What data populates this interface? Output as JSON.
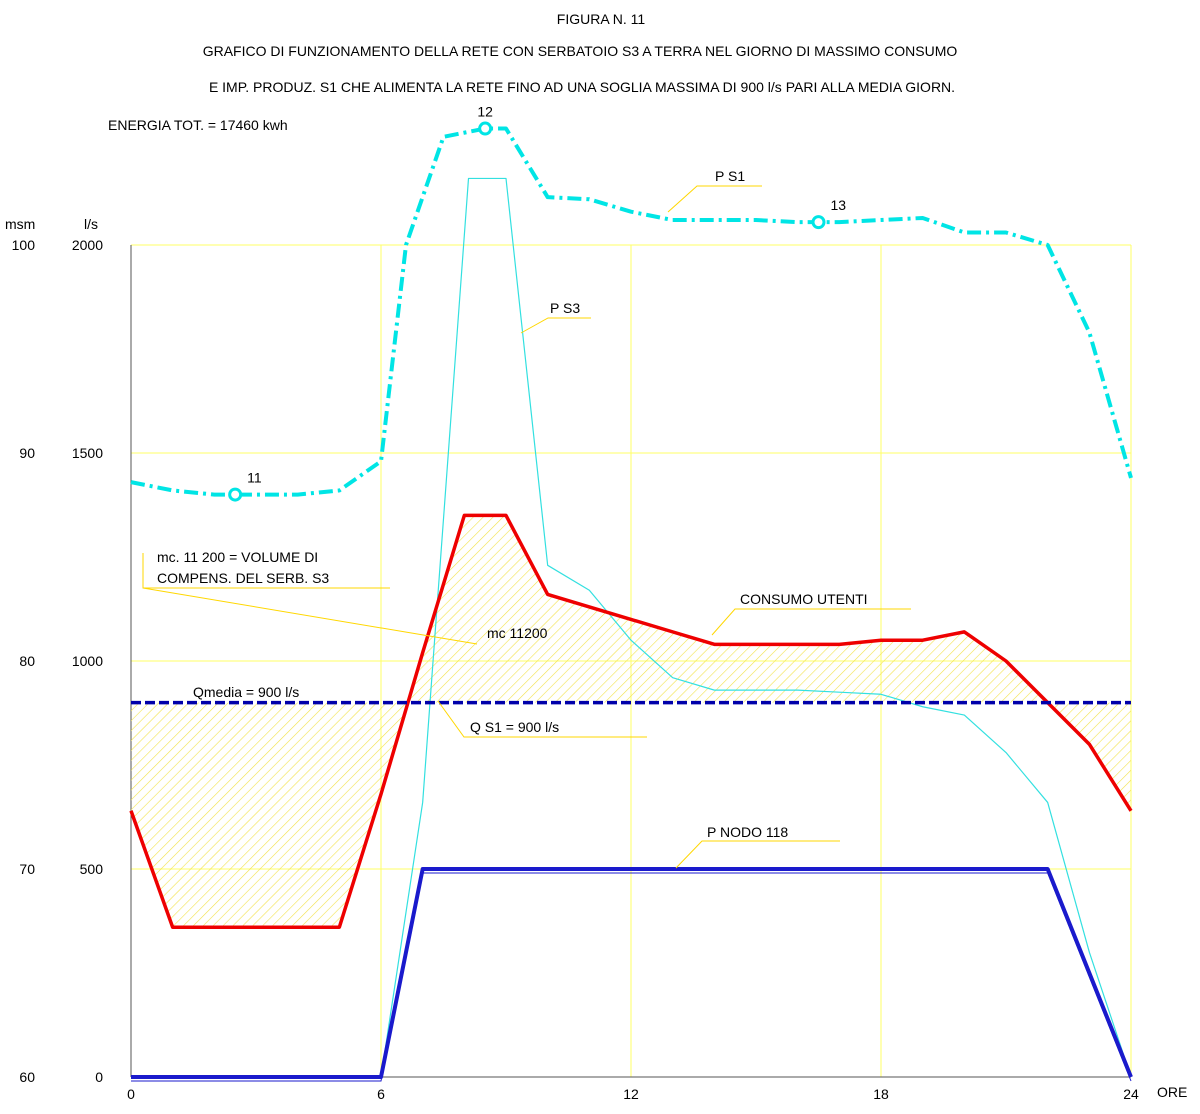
{
  "header": {
    "figure_label": "FIGURA N. 11",
    "title_line1": "GRAFICO DI FUNZIONAMENTO DELLA RETE CON SERBATOIO S3 A TERRA NEL GIORNO DI MASSIMO CONSUMO",
    "title_line2": "E IMP. PRODUZ. S1 CHE ALIMENTA LA RETE FINO AD UNA SOGLIA MASSIMA DI 900 l/s PARI ALLA MEDIA GIORN.",
    "energy": "ENERGIA TOT. = 17460 kwh"
  },
  "chart_data": {
    "type": "line",
    "xlabel": "ORE",
    "ylabel_left_msm": "msm",
    "ylabel_left_flow": "l/s",
    "xlim": [
      0,
      24
    ],
    "ylim_flow": [
      0,
      2000
    ],
    "ylim_msm": [
      60,
      100
    ],
    "grid": true,
    "x_ticks": [
      "0",
      "6",
      "12",
      "18",
      "24"
    ],
    "y_ticks_flow": [
      "0",
      "500",
      "1000",
      "1500",
      "2000"
    ],
    "y_ticks_msm": [
      "60",
      "70",
      "80",
      "90",
      "100"
    ],
    "colors": {
      "grid": "#ffff66",
      "ps1": "#00e5e5",
      "ps3": "#33e0e0",
      "consumo": "#ee0000",
      "qmedia": "#0000aa",
      "pnodo": "#1a1acc",
      "hatch": "#f2e24d",
      "leader": "#ffd700"
    },
    "series": [
      {
        "name": "P S1",
        "unit": "msm",
        "points": [
          [
            0,
            88.6
          ],
          [
            1,
            88.2
          ],
          [
            2,
            88.0
          ],
          [
            3,
            88.0
          ],
          [
            4,
            88.0
          ],
          [
            5,
            88.2
          ],
          [
            6,
            89.6
          ],
          [
            6.6,
            100.0
          ],
          [
            7.5,
            105.2
          ],
          [
            8.5,
            105.6
          ],
          [
            9,
            105.6
          ],
          [
            10,
            102.3
          ],
          [
            11,
            102.2
          ],
          [
            12,
            101.6
          ],
          [
            13,
            101.2
          ],
          [
            14,
            101.2
          ],
          [
            15,
            101.2
          ],
          [
            16,
            101.1
          ],
          [
            17,
            101.1
          ],
          [
            18,
            101.2
          ],
          [
            19,
            101.3
          ],
          [
            20,
            100.6
          ],
          [
            21,
            100.6
          ],
          [
            22,
            100.0
          ],
          [
            23,
            95.8
          ],
          [
            24,
            88.8
          ]
        ]
      },
      {
        "name": "P S3",
        "unit": "l/s",
        "points": [
          [
            6,
            0
          ],
          [
            7,
            660
          ],
          [
            8.1,
            2160
          ],
          [
            9,
            2160
          ],
          [
            10,
            1230
          ],
          [
            11,
            1170
          ],
          [
            12,
            1050
          ],
          [
            13,
            960
          ],
          [
            14,
            930
          ],
          [
            15,
            930
          ],
          [
            16,
            930
          ],
          [
            17,
            925
          ],
          [
            18,
            920
          ],
          [
            19,
            890
          ],
          [
            20,
            870
          ],
          [
            21,
            780
          ],
          [
            22,
            660
          ],
          [
            23,
            300
          ],
          [
            24,
            0
          ]
        ]
      },
      {
        "name": "CONSUMO UTENTI",
        "unit": "l/s",
        "points": [
          [
            0,
            640
          ],
          [
            1,
            360
          ],
          [
            2,
            360
          ],
          [
            3,
            360
          ],
          [
            4,
            360
          ],
          [
            5,
            360
          ],
          [
            6,
            680
          ],
          [
            7,
            1020
          ],
          [
            8,
            1350
          ],
          [
            9,
            1350
          ],
          [
            10,
            1160
          ],
          [
            11,
            1130
          ],
          [
            12,
            1100
          ],
          [
            13,
            1070
          ],
          [
            14,
            1040
          ],
          [
            15,
            1040
          ],
          [
            16,
            1040
          ],
          [
            17,
            1040
          ],
          [
            18,
            1050
          ],
          [
            19,
            1050
          ],
          [
            20,
            1070
          ],
          [
            21,
            1000
          ],
          [
            22,
            900
          ],
          [
            23,
            800
          ],
          [
            24,
            640
          ]
        ]
      },
      {
        "name": "Qmedia = 900 l/s",
        "unit": "l/s",
        "points": [
          [
            0,
            900
          ],
          [
            24,
            900
          ]
        ]
      },
      {
        "name": "P NODO 118",
        "unit": "msm",
        "points": [
          [
            0,
            60
          ],
          [
            6,
            60
          ],
          [
            7,
            70
          ],
          [
            22,
            70
          ],
          [
            24,
            60
          ]
        ]
      }
    ],
    "markers": [
      {
        "label": "11",
        "x": 2.5,
        "y": 88.0,
        "series": "P S1"
      },
      {
        "label": "12",
        "x": 8.5,
        "y": 105.6,
        "series": "P S1"
      },
      {
        "label": "13",
        "x": 16.5,
        "y": 101.1,
        "series": "P S1"
      }
    ],
    "annotations": [
      {
        "text": "P S1"
      },
      {
        "text": "P S3"
      },
      {
        "text": "CONSUMO UTENTI"
      },
      {
        "text": "Qmedia = 900 l/s"
      },
      {
        "text": "Q S1 = 900 l/s"
      },
      {
        "text": "P NODO 118"
      },
      {
        "text": "mc 11200"
      },
      {
        "text": "mc. 11 200 = VOLUME DI"
      },
      {
        "text": "COMPENS. DEL SERB. S3"
      }
    ]
  }
}
